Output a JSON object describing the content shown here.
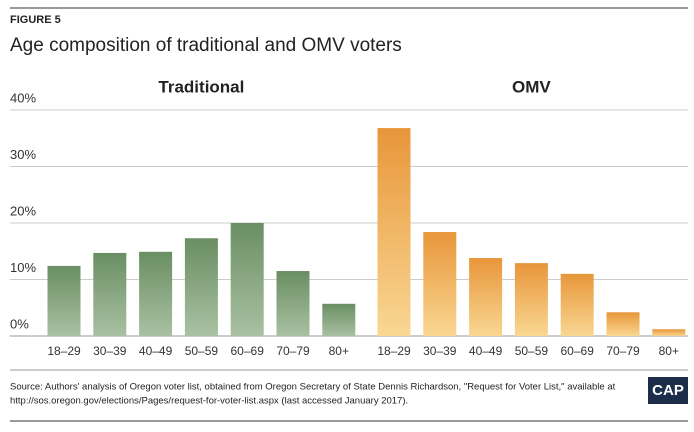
{
  "figure_label": "FIGURE 5",
  "title": "Age composition of traditional and OMV voters",
  "source": [
    "Source: Authors' analysis of Oregon voter list, obtained from Oregon Secretary of State Dennis Richardson, \"Request for Voter List,\" available at",
    "http://sos.oregon.gov/elections/Pages/request-for-voter-list.aspx (last accessed January 2017)."
  ],
  "logo": "CAP",
  "chart_data": [
    {
      "type": "bar",
      "title": "Traditional",
      "categories": [
        "18–29",
        "30–39",
        "40–49",
        "50–59",
        "60–69",
        "70–79",
        "80+"
      ],
      "values": [
        12.4,
        14.7,
        14.9,
        17.3,
        20.0,
        11.5,
        5.7
      ],
      "color": "#6a8e63",
      "gradient_to": "#a9c1a2",
      "ylim": [
        0,
        40
      ],
      "yticks": [
        {
          "value": 0,
          "label": "0%"
        },
        {
          "value": 10,
          "label": "10%"
        },
        {
          "value": 20,
          "label": "20%"
        },
        {
          "value": 30,
          "label": "30%"
        },
        {
          "value": 40,
          "label": "40%"
        }
      ],
      "grid": true
    },
    {
      "type": "bar",
      "title": "OMV",
      "categories": [
        "18–29",
        "30–39",
        "40–49",
        "50–59",
        "60–69",
        "70–79",
        "80+"
      ],
      "values": [
        36.8,
        18.4,
        13.8,
        12.9,
        11.0,
        4.2,
        1.2
      ],
      "color": "#e8963a",
      "gradient_to": "#f9d793",
      "ylim": [
        0,
        40
      ]
    }
  ]
}
